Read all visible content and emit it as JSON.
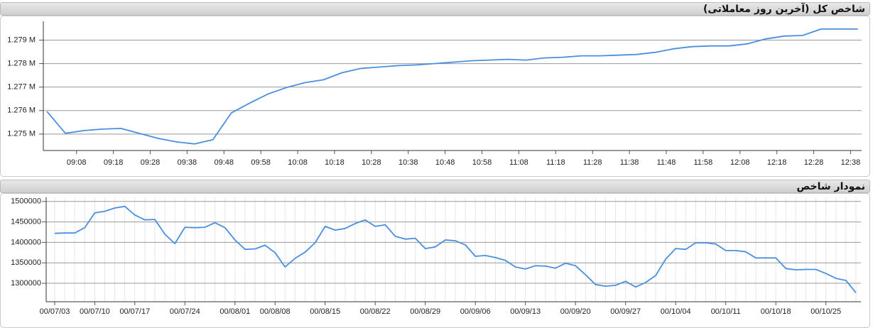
{
  "chart_data": [
    {
      "type": "line",
      "title": "شاخص کل (آخرین روز معاملاتی)",
      "color": "#4a8fe0",
      "x": [
        "09:00",
        "09:05",
        "09:10",
        "09:15",
        "09:20",
        "09:25",
        "09:30",
        "09:35",
        "09:40",
        "09:45",
        "09:50",
        "09:55",
        "10:00",
        "10:05",
        "10:10",
        "10:15",
        "10:20",
        "10:25",
        "10:30",
        "10:35",
        "10:40",
        "10:45",
        "10:50",
        "10:55",
        "11:00",
        "11:05",
        "11:10",
        "11:15",
        "11:20",
        "11:25",
        "11:30",
        "11:35",
        "11:40",
        "11:45",
        "11:50",
        "11:55",
        "12:00",
        "12:05",
        "12:10",
        "12:15",
        "12:20",
        "12:25",
        "12:30",
        "12:35",
        "12:40"
      ],
      "values": [
        1275960,
        1275030,
        1275150,
        1275210,
        1275240,
        1275030,
        1274820,
        1274670,
        1274580,
        1274760,
        1275900,
        1276320,
        1276710,
        1276980,
        1277190,
        1277310,
        1277610,
        1277790,
        1277850,
        1277910,
        1277940,
        1278000,
        1278060,
        1278120,
        1278150,
        1278180,
        1278150,
        1278240,
        1278270,
        1278330,
        1278330,
        1278360,
        1278390,
        1278480,
        1278630,
        1278720,
        1278750,
        1278750,
        1278840,
        1279050,
        1279170,
        1279200,
        1279470,
        1279470,
        1279470
      ],
      "xlim": [
        "08:59",
        "12:41"
      ],
      "xticks": [
        "09:08",
        "09:18",
        "09:28",
        "09:38",
        "09:48",
        "09:58",
        "10:08",
        "10:18",
        "10:28",
        "10:38",
        "10:48",
        "10:58",
        "11:08",
        "11:18",
        "11:28",
        "11:38",
        "11:48",
        "11:58",
        "12:08",
        "12:18",
        "12:28",
        "12:38"
      ],
      "ylim": [
        1274300,
        1279800
      ],
      "yticks": [
        {
          "value": 1275000,
          "label": "1.275 M"
        },
        {
          "value": 1276000,
          "label": "1.276 M"
        },
        {
          "value": 1277000,
          "label": "1.277 M"
        },
        {
          "value": 1278000,
          "label": "1.278 M"
        },
        {
          "value": 1279000,
          "label": "1.279 M"
        }
      ],
      "grid": true
    },
    {
      "type": "line",
      "title": "نمودار شاخص",
      "color": "#4a8fe0",
      "categories": [
        "00/07/03",
        null,
        null,
        null,
        "00/07/10",
        null,
        null,
        null,
        "00/07/17",
        null,
        null,
        null,
        null,
        "00/07/24",
        null,
        null,
        null,
        null,
        "00/08/01",
        null,
        null,
        null,
        "00/08/08",
        null,
        null,
        null,
        null,
        "00/08/15",
        null,
        null,
        null,
        null,
        "00/08/22",
        null,
        null,
        null,
        null,
        "00/08/29",
        null,
        null,
        null,
        null,
        "00/09/06",
        null,
        null,
        null,
        null,
        "00/09/13",
        null,
        null,
        null,
        null,
        "00/09/20",
        null,
        null,
        null,
        null,
        "00/09/27",
        null,
        null,
        null,
        null,
        "00/10/04",
        null,
        null,
        null,
        null,
        "00/10/11",
        null,
        null,
        null,
        null,
        "00/10/18",
        null,
        null,
        null,
        null,
        "00/10/25",
        null,
        null,
        null
      ],
      "values": [
        1422000,
        1423000,
        1423000,
        1436000,
        1472000,
        1476000,
        1484000,
        1488000,
        1467000,
        1455000,
        1456000,
        1420000,
        1397000,
        1437000,
        1436000,
        1437000,
        1448000,
        1436000,
        1406000,
        1383000,
        1384000,
        1393000,
        1375000,
        1340000,
        1361000,
        1376000,
        1399000,
        1439000,
        1430000,
        1434000,
        1446000,
        1455000,
        1439000,
        1443000,
        1415000,
        1408000,
        1410000,
        1385000,
        1389000,
        1406000,
        1404000,
        1394000,
        1366000,
        1368000,
        1363000,
        1356000,
        1340000,
        1335000,
        1343000,
        1342000,
        1337000,
        1349000,
        1343000,
        1321000,
        1297000,
        1293000,
        1295000,
        1305000,
        1291000,
        1302000,
        1319000,
        1359000,
        1385000,
        1383000,
        1399000,
        1399000,
        1396000,
        1380000,
        1380000,
        1377000,
        1362000,
        1362000,
        1362000,
        1336000,
        1333000,
        1334000,
        1334000,
        1324000,
        1312000,
        1307000,
        1277000
      ],
      "ylim": [
        1255000,
        1510000
      ],
      "yticks": [
        1300000,
        1350000,
        1400000,
        1450000,
        1500000
      ],
      "grid": true
    }
  ]
}
